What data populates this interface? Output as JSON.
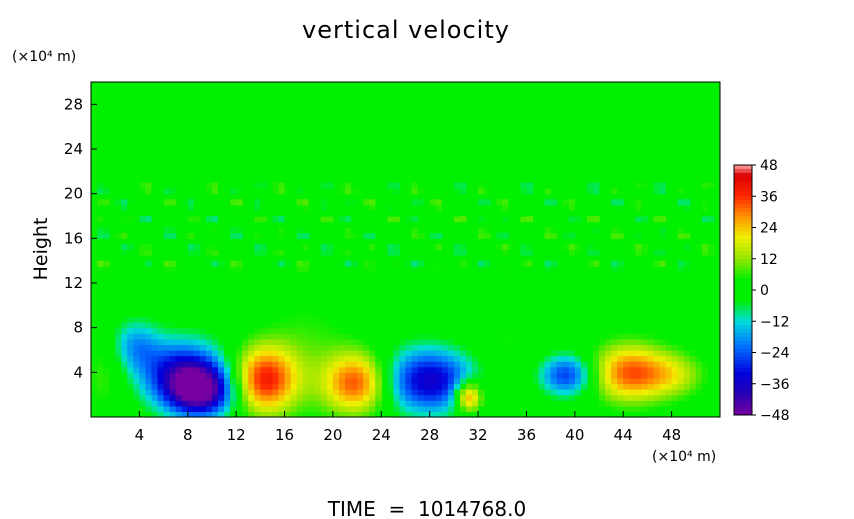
{
  "chart_data": {
    "type": "heatmap",
    "title": "vertical velocity",
    "ylabel": "Height",
    "xlabel": "",
    "y_unit_label": "(×10⁴ m)",
    "x_unit_label": "(×10⁴ m)",
    "footer": "TIME  =  1014768.0",
    "xlim": [
      0,
      52
    ],
    "ylim": [
      0,
      30
    ],
    "x_ticks": [
      4,
      8,
      12,
      16,
      20,
      24,
      28,
      32,
      36,
      40,
      44,
      48
    ],
    "y_ticks": [
      4,
      8,
      12,
      16,
      20,
      24,
      28
    ],
    "colorbar": {
      "range": [
        -48,
        48
      ],
      "labels": [
        "48",
        "36",
        "24",
        "12",
        "0",
        "−12",
        "−24",
        "−36",
        "−48"
      ],
      "label_values": [
        48,
        36,
        24,
        12,
        0,
        -12,
        -24,
        -36,
        -48
      ]
    },
    "background_value": 0,
    "features": [
      {
        "x": 9.0,
        "y": 2.3,
        "sx": 2.0,
        "sy": 1.6,
        "value": -44
      },
      {
        "x": 7.5,
        "y": 4.2,
        "sx": 2.6,
        "sy": 2.0,
        "value": -30
      },
      {
        "x": 3.6,
        "y": 6.5,
        "sx": 1.4,
        "sy": 1.6,
        "value": -16
      },
      {
        "x": 14.3,
        "y": 3.4,
        "sx": 1.9,
        "sy": 2.1,
        "value": 38
      },
      {
        "x": 22.0,
        "y": 3.1,
        "sx": 1.9,
        "sy": 1.9,
        "value": 34
      },
      {
        "x": 28.0,
        "y": 3.3,
        "sx": 2.8,
        "sy": 2.0,
        "value": -36
      },
      {
        "x": 31.2,
        "y": 1.9,
        "sx": 0.8,
        "sy": 1.0,
        "value": 36
      },
      {
        "x": 39.3,
        "y": 3.8,
        "sx": 1.6,
        "sy": 1.3,
        "value": -28
      },
      {
        "x": 44.5,
        "y": 4.0,
        "sx": 2.2,
        "sy": 1.8,
        "value": 32
      },
      {
        "x": 48.2,
        "y": 3.8,
        "sx": 1.8,
        "sy": 1.4,
        "value": 14
      },
      {
        "x": 18.0,
        "y": 6.0,
        "sx": 2.6,
        "sy": 4.0,
        "value": 6
      },
      {
        "x": 34.0,
        "y": 6.0,
        "sx": 2.6,
        "sy": 3.6,
        "value": 5
      },
      {
        "x": 1.2,
        "y": 4.0,
        "sx": 1.4,
        "sy": 2.5,
        "value": 8
      }
    ]
  }
}
